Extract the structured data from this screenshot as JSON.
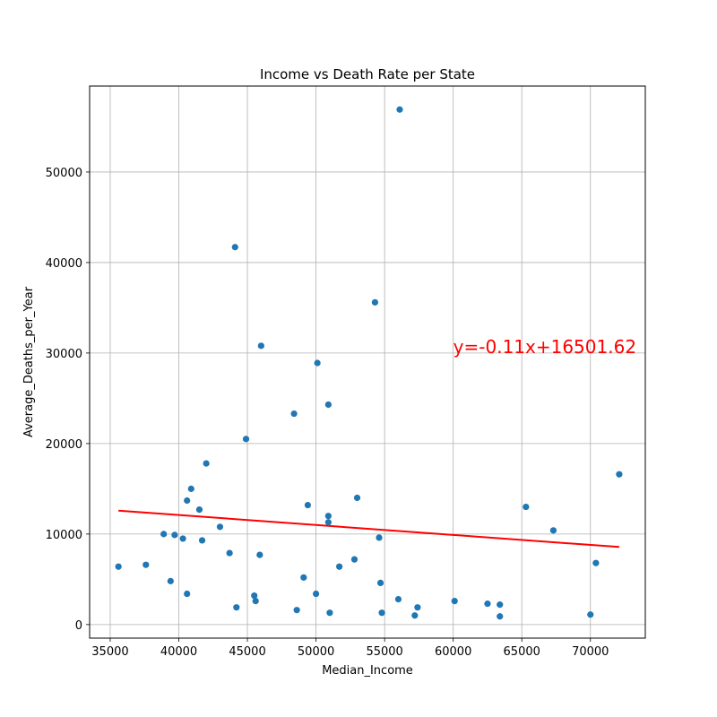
{
  "chart_data": {
    "type": "scatter",
    "title": "Income vs Death Rate per State",
    "xlabel": "Median_Income",
    "ylabel": "Average_Deaths_per_Year",
    "xlim": [
      33500,
      74000
    ],
    "ylim": [
      -1500,
      59500
    ],
    "xticks": [
      35000,
      40000,
      45000,
      50000,
      55000,
      60000,
      65000,
      70000
    ],
    "yticks": [
      0,
      10000,
      20000,
      30000,
      40000,
      50000
    ],
    "grid": true,
    "point_color": "#1f77b4",
    "line_color": "#ff0000",
    "points": [
      {
        "x": 35600,
        "y": 6400
      },
      {
        "x": 37600,
        "y": 6600
      },
      {
        "x": 38900,
        "y": 10000
      },
      {
        "x": 39400,
        "y": 4800
      },
      {
        "x": 39700,
        "y": 9900
      },
      {
        "x": 40300,
        "y": 9500
      },
      {
        "x": 40600,
        "y": 13700
      },
      {
        "x": 40600,
        "y": 3400
      },
      {
        "x": 40900,
        "y": 15000
      },
      {
        "x": 41500,
        "y": 12700
      },
      {
        "x": 41700,
        "y": 9300
      },
      {
        "x": 42000,
        "y": 17800
      },
      {
        "x": 43000,
        "y": 10800
      },
      {
        "x": 43700,
        "y": 7900
      },
      {
        "x": 44100,
        "y": 41700
      },
      {
        "x": 44200,
        "y": 1900
      },
      {
        "x": 44900,
        "y": 20500
      },
      {
        "x": 45500,
        "y": 3200
      },
      {
        "x": 45600,
        "y": 2600
      },
      {
        "x": 45900,
        "y": 7700
      },
      {
        "x": 46000,
        "y": 30800
      },
      {
        "x": 48400,
        "y": 23300
      },
      {
        "x": 48600,
        "y": 1600
      },
      {
        "x": 49100,
        "y": 5200
      },
      {
        "x": 49400,
        "y": 13200
      },
      {
        "x": 50000,
        "y": 3400
      },
      {
        "x": 50100,
        "y": 28900
      },
      {
        "x": 50900,
        "y": 12000
      },
      {
        "x": 50900,
        "y": 24300
      },
      {
        "x": 50900,
        "y": 11300
      },
      {
        "x": 51000,
        "y": 1300
      },
      {
        "x": 51700,
        "y": 6400
      },
      {
        "x": 52800,
        "y": 7200
      },
      {
        "x": 53000,
        "y": 14000
      },
      {
        "x": 54300,
        "y": 35600
      },
      {
        "x": 54600,
        "y": 9600
      },
      {
        "x": 54700,
        "y": 4600
      },
      {
        "x": 54800,
        "y": 1300
      },
      {
        "x": 56100,
        "y": 56900
      },
      {
        "x": 56000,
        "y": 2800
      },
      {
        "x": 57200,
        "y": 1000
      },
      {
        "x": 57400,
        "y": 1900
      },
      {
        "x": 60100,
        "y": 2600
      },
      {
        "x": 62500,
        "y": 2300
      },
      {
        "x": 63400,
        "y": 2200
      },
      {
        "x": 63400,
        "y": 900
      },
      {
        "x": 65300,
        "y": 13000
      },
      {
        "x": 67300,
        "y": 10400
      },
      {
        "x": 70000,
        "y": 1100
      },
      {
        "x": 70400,
        "y": 6800
      },
      {
        "x": 72100,
        "y": 16600
      }
    ],
    "regression": {
      "slope": -0.11,
      "intercept": 16501.62,
      "x_range": [
        35600,
        72100
      ],
      "label": "y=-0.11x+16501.62",
      "label_x": 60000,
      "label_y": 30000
    }
  }
}
